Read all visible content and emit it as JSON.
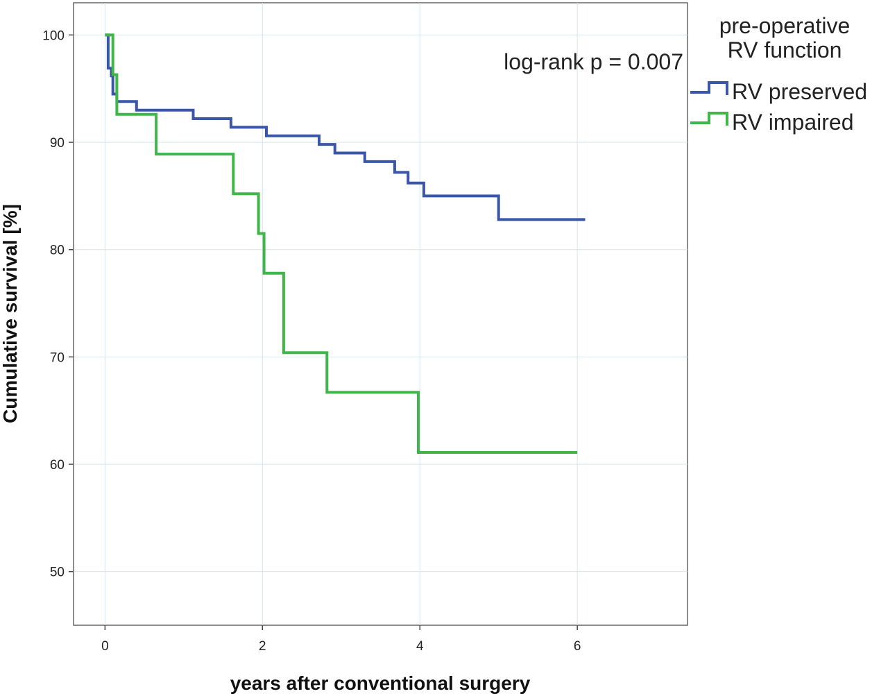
{
  "chart_data": {
    "type": "line",
    "title": "",
    "xlabel": "years after conventional surgery",
    "ylabel": "Cumulative survival [%]",
    "xlim": [
      -0.4,
      7.4
    ],
    "ylim": [
      45,
      103
    ],
    "xticks": [
      0,
      2,
      4,
      6
    ],
    "yticks": [
      50,
      60,
      70,
      80,
      90,
      100
    ],
    "xtick_labels": [
      "0",
      "2",
      "4",
      "6"
    ],
    "ytick_labels": [
      "50",
      "60",
      "70",
      "80",
      "90",
      "100"
    ],
    "grid": true,
    "step": true,
    "annotation": "log-rank p = 0.007",
    "legend": {
      "title_line1": "pre-operative",
      "title_line2": "RV function",
      "placement": "top-right-outside"
    },
    "series": [
      {
        "name": "RV preserved",
        "color": "#3a56a8",
        "x": [
          0,
          0.04,
          0.08,
          0.1,
          0.15,
          0.22,
          0.4,
          0.55,
          1.12,
          1.6,
          2.05,
          2.72,
          2.92,
          3.3,
          3.68,
          3.85,
          4.05,
          5.0,
          6.1
        ],
        "y": [
          100,
          96.9,
          96.2,
          94.5,
          93.8,
          93.8,
          93.0,
          93.0,
          92.2,
          91.4,
          90.6,
          89.8,
          89.0,
          88.2,
          87.2,
          86.2,
          85.0,
          82.8,
          82.8
        ]
      },
      {
        "name": "RV impaired",
        "color": "#3fb54a",
        "x": [
          0,
          0.1,
          0.15,
          0.65,
          1.63,
          1.95,
          2.02,
          2.27,
          2.82,
          3.98,
          6.0
        ],
        "y": [
          100,
          96.3,
          92.6,
          88.9,
          85.2,
          81.5,
          77.8,
          70.4,
          66.7,
          61.1,
          61.1
        ]
      }
    ]
  }
}
